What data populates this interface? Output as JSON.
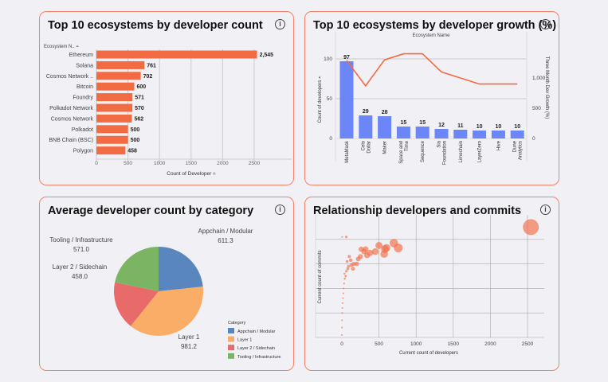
{
  "chart_data": [
    {
      "type": "bar",
      "orientation": "horizontal",
      "title": "Top 10 ecosystems by developer count",
      "ylabel": "Ecosystem N..",
      "xlabel": "Count of Developer",
      "categories": [
        "Ethereum",
        "Solana",
        "Cosmos Network ..",
        "Bitcoin",
        "Foundry",
        "Polkadot Network",
        "Cosmos Network",
        "Polkadot",
        "BNB Chain (BSC)",
        "Polygon"
      ],
      "values": [
        2545,
        761,
        702,
        600,
        571,
        570,
        562,
        500,
        500,
        458
      ],
      "value_labels": [
        "2,545",
        "761",
        "702",
        "600",
        "571",
        "570",
        "562",
        "500",
        "500",
        "458"
      ],
      "xticks": [
        "0",
        "500",
        "1000",
        "1500",
        "2000",
        "2500"
      ],
      "xlim": [
        0,
        2900
      ],
      "color": "#f26b43",
      "grid": true
    },
    {
      "type": "bar+line",
      "title": "Top 10 ecosystems by developer growth (%)",
      "header": "Ecosystem Name",
      "ylabel": "Count of developers",
      "y2label": "Three Month Dev Growth (%)",
      "categories": [
        "MetaMask",
        "Celo Dollar",
        "Maker",
        "Space and Time",
        "Sequence",
        "Sia Foundation",
        "Limechain",
        "LayerZero",
        "Hive",
        "Dune Analytics"
      ],
      "values": [
        97,
        29,
        28,
        15,
        15,
        12,
        11,
        10,
        10,
        10
      ],
      "growth": [
        1290,
        870,
        1300,
        1400,
        1400,
        1100,
        1000,
        900,
        900,
        900
      ],
      "yticks": [
        "0",
        "50",
        "100"
      ],
      "y2ticks": [
        "0",
        "500",
        "1,000"
      ],
      "ylim": [
        0,
        110
      ],
      "y2lim": [
        0,
        1450
      ],
      "bar_color": "#6b86f7",
      "line_color": "#f26b43"
    },
    {
      "type": "pie",
      "title": "Average developer count by category",
      "legend_title": "Category",
      "legend_position": "bottom-right",
      "slices": [
        {
          "label": "Appchain / Modular",
          "value": 611.3,
          "text": "611.3",
          "color": "#5a86bf"
        },
        {
          "label": "Layer 1",
          "value": 981.2,
          "text": "981.2",
          "color": "#f9ad66"
        },
        {
          "label": "Layer 2 / Sidechain",
          "value": 458.0,
          "text": "458.0",
          "color": "#e86b6a"
        },
        {
          "label": "Tooling / Infrastructure",
          "value": 571.0,
          "text": "571.0",
          "color": "#7bb563"
        }
      ]
    },
    {
      "type": "scatter",
      "title": "Relationship developers and commits",
      "xlabel": "Current count of developers",
      "ylabel": "Current count of commits",
      "xticks": [
        "0",
        "500",
        "1000",
        "1500",
        "2000",
        "2500"
      ],
      "xlim": [
        -100,
        2800
      ],
      "color": "#f26b43",
      "points": [
        [
          2545,
          4.5
        ],
        [
          700,
          3.85
        ],
        [
          760,
          3.65
        ],
        [
          500,
          3.75
        ],
        [
          580,
          3.6
        ],
        [
          570,
          3.4
        ],
        [
          600,
          3.65
        ],
        [
          450,
          3.5
        ],
        [
          380,
          3.45
        ],
        [
          340,
          3.35
        ],
        [
          300,
          3.5
        ],
        [
          260,
          3.6
        ],
        [
          250,
          3.3
        ],
        [
          200,
          3.0
        ],
        [
          160,
          3.0
        ],
        [
          130,
          2.95
        ],
        [
          100,
          3.3
        ],
        [
          90,
          2.9
        ],
        [
          80,
          2.8
        ],
        [
          60,
          2.7
        ],
        [
          50,
          2.5
        ],
        [
          40,
          2.4
        ],
        [
          30,
          2.2
        ],
        [
          25,
          2.0
        ],
        [
          20,
          1.8
        ],
        [
          15,
          1.6
        ],
        [
          10,
          1.4
        ],
        [
          8,
          1.2
        ],
        [
          5,
          1.0
        ],
        [
          3,
          0.7
        ],
        [
          2,
          0.4
        ],
        [
          1,
          0.1
        ],
        [
          60,
          4.1
        ],
        [
          5,
          4.1
        ],
        [
          120,
          3.15
        ],
        [
          220,
          3.2
        ],
        [
          320,
          3.6
        ],
        [
          150,
          2.8
        ],
        [
          70,
          3.1
        ],
        [
          35,
          2.6
        ]
      ]
    }
  ]
}
